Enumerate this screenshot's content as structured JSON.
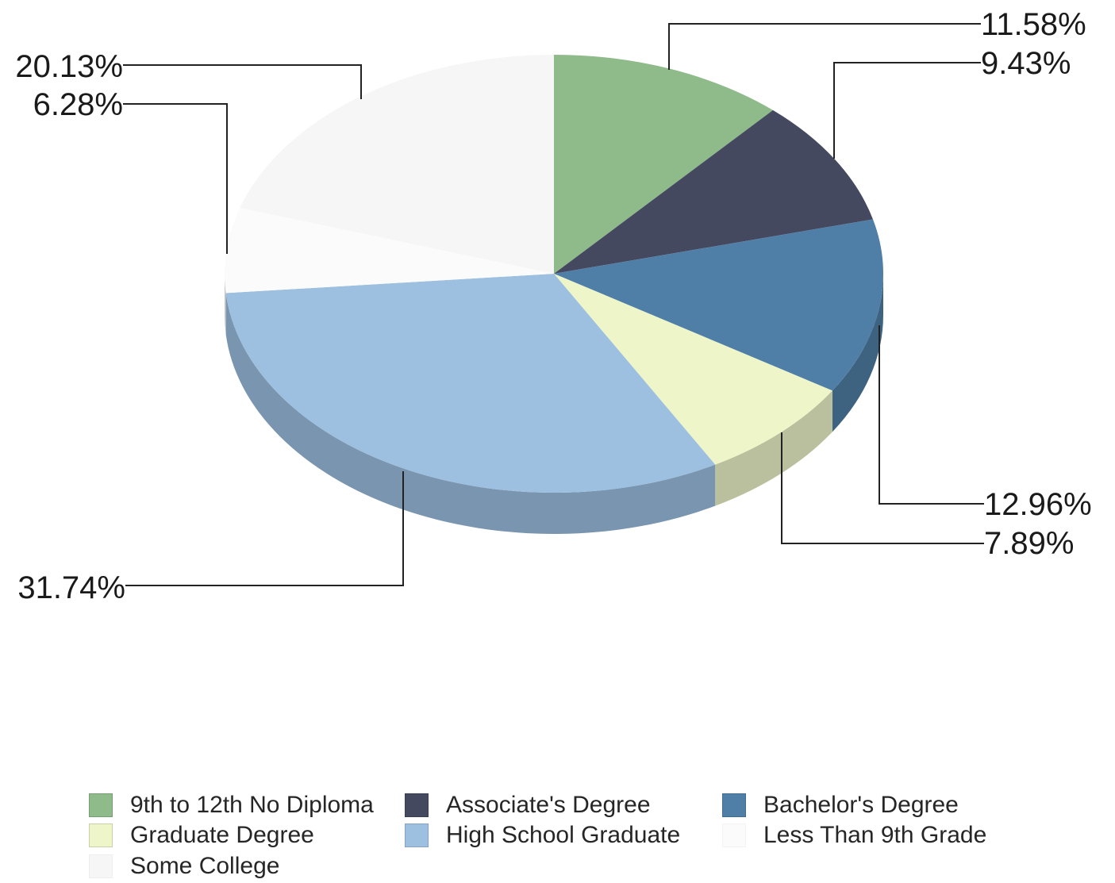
{
  "chart_data": {
    "type": "pie",
    "title": "",
    "slices": [
      {
        "label": "9th to 12th No Diploma",
        "value": 11.58,
        "display": "11.58%",
        "color": "#8fba8a"
      },
      {
        "label": "Associate's Degree",
        "value": 9.43,
        "display": "9.43%",
        "color": "#44495f"
      },
      {
        "label": "Bachelor's Degree",
        "value": 12.96,
        "display": "12.96%",
        "color": "#4f7fa6"
      },
      {
        "label": "Graduate Degree",
        "value": 7.89,
        "display": "7.89%",
        "color": "#eef5c9"
      },
      {
        "label": "High School Graduate",
        "value": 31.74,
        "display": "31.74%",
        "color": "#9dbfe0"
      },
      {
        "label": "Less Than 9th Grade",
        "value": 6.28,
        "display": "6.28%",
        "color": "#fbfbfb"
      },
      {
        "label": "Some College",
        "value": 20.13,
        "display": "20.13%",
        "color": "#f6f6f6"
      }
    ],
    "legend": {
      "placement": "bottom",
      "order": [
        "9th to 12th No Diploma",
        "Associate's Degree",
        "Bachelor's Degree",
        "Graduate Degree",
        "High School Graduate",
        "Less Than 9th Grade",
        "Some College"
      ]
    },
    "style": "3d-tilted-pie"
  }
}
